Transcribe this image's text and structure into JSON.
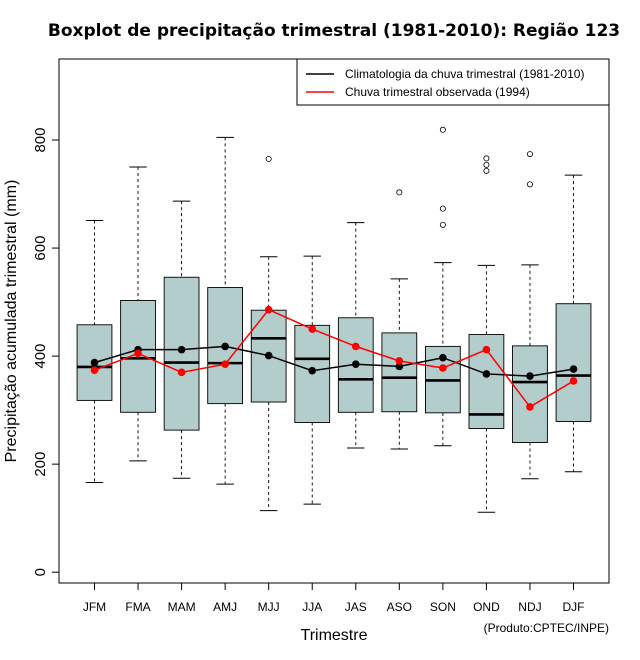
{
  "chart_data": {
    "type": "boxplot",
    "title": "Boxplot de precipitação trimestral (1981-2010): Região 123",
    "xlabel": "Trimestre",
    "ylabel": "Precipitação acumulada trimestral (mm)",
    "ylim": [
      -20,
      950
    ],
    "yticks": [
      0,
      200,
      400,
      600,
      800
    ],
    "categories": [
      "JFM",
      "FMA",
      "MAM",
      "AMJ",
      "MJJ",
      "JJA",
      "JAS",
      "ASO",
      "SON",
      "OND",
      "NDJ",
      "DJF"
    ],
    "boxes": [
      {
        "label": "JFM",
        "whisker_low": 166,
        "q1": 318,
        "median": 380,
        "q3": 458,
        "whisker_high": 651,
        "outliers": []
      },
      {
        "label": "FMA",
        "whisker_low": 206,
        "q1": 296,
        "median": 396,
        "q3": 503,
        "whisker_high": 750,
        "outliers": []
      },
      {
        "label": "MAM",
        "whisker_low": 174,
        "q1": 263,
        "median": 388,
        "q3": 546,
        "whisker_high": 687,
        "outliers": []
      },
      {
        "label": "AMJ",
        "whisker_low": 163,
        "q1": 312,
        "median": 387,
        "q3": 527,
        "whisker_high": 805,
        "outliers": []
      },
      {
        "label": "MJJ",
        "whisker_low": 114,
        "q1": 315,
        "median": 433,
        "q3": 485,
        "whisker_high": 584,
        "outliers": [
          765
        ]
      },
      {
        "label": "JJA",
        "whisker_low": 126,
        "q1": 277,
        "median": 395,
        "q3": 457,
        "whisker_high": 585,
        "outliers": []
      },
      {
        "label": "JAS",
        "whisker_low": 230,
        "q1": 296,
        "median": 357,
        "q3": 471,
        "whisker_high": 647,
        "outliers": []
      },
      {
        "label": "ASO",
        "whisker_low": 228,
        "q1": 297,
        "median": 360,
        "q3": 443,
        "whisker_high": 543,
        "outliers": [
          703
        ]
      },
      {
        "label": "SON",
        "whisker_low": 234,
        "q1": 295,
        "median": 355,
        "q3": 418,
        "whisker_high": 573,
        "outliers": [
          643,
          673,
          819
        ]
      },
      {
        "label": "OND",
        "whisker_low": 111,
        "q1": 266,
        "median": 292,
        "q3": 440,
        "whisker_high": 568,
        "outliers": [
          743,
          754,
          766
        ]
      },
      {
        "label": "NDJ",
        "whisker_low": 173,
        "q1": 240,
        "median": 352,
        "q3": 419,
        "whisker_high": 569,
        "outliers": [
          718,
          774
        ]
      },
      {
        "label": "DJF",
        "whisker_low": 186,
        "q1": 279,
        "median": 364,
        "q3": 497,
        "whisker_high": 735,
        "outliers": []
      }
    ],
    "series": [
      {
        "name": "Climatologia da chuva trimestral (1981-2010)",
        "color": "#000000",
        "values": [
          388,
          412,
          412,
          418,
          401,
          373,
          385,
          381,
          397,
          367,
          363,
          376
        ]
      },
      {
        "name": "Chuva trimestral observada (1994)",
        "color": "#ff0000",
        "values": [
          374,
          405,
          370,
          385,
          486,
          450,
          418,
          391,
          378,
          412,
          306,
          354
        ]
      }
    ],
    "box_fill": "#b3cccc",
    "legend_position": "top-right",
    "footer": "(Produto:CPTEC/INPE)"
  }
}
